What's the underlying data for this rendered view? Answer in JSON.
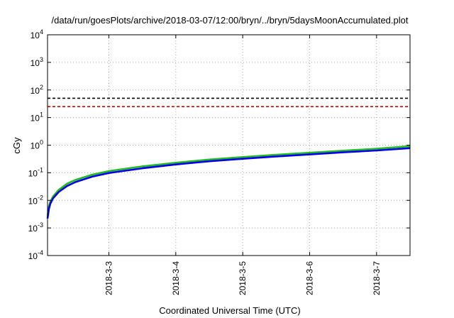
{
  "chart_data": {
    "type": "line",
    "title": "/data/run/goesPlots/archive/2018-03-07/12:00/bryn/../bryn/5daysMoonAccumulated.plot",
    "xlabel": "Coordinated Universal Time (UTC)",
    "ylabel": "cGy",
    "yscale": "log",
    "ylim": [
      0.0001,
      10000
    ],
    "y_ticks": [
      {
        "base": "10",
        "exp": "-4",
        "value": 0.0001
      },
      {
        "base": "10",
        "exp": "-3",
        "value": 0.001
      },
      {
        "base": "10",
        "exp": "-2",
        "value": 0.01
      },
      {
        "base": "10",
        "exp": "-1",
        "value": 0.1
      },
      {
        "base": "10",
        "exp": "0",
        "value": 1
      },
      {
        "base": "10",
        "exp": "1",
        "value": 10
      },
      {
        "base": "10",
        "exp": "2",
        "value": 100
      },
      {
        "base": "10",
        "exp": "3",
        "value": 1000
      },
      {
        "base": "10",
        "exp": "4",
        "value": 10000
      }
    ],
    "xlim": [
      "2018-03-02T02:00",
      "2018-03-07T12:00"
    ],
    "x_ticks": [
      {
        "label": "2018-3-3",
        "date": "2018-03-03"
      },
      {
        "label": "2018-3-4",
        "date": "2018-03-04"
      },
      {
        "label": "2018-3-5",
        "date": "2018-03-05"
      },
      {
        "label": "2018-3-6",
        "date": "2018-03-06"
      },
      {
        "label": "2018-3-7",
        "date": "2018-03-07"
      }
    ],
    "grid": true,
    "thresholds": [
      {
        "value": 50,
        "color": "#000000",
        "style": "dashed"
      },
      {
        "value": 25,
        "color": "#e00000",
        "style": "dashed"
      }
    ],
    "series": [
      {
        "color": "#22bb22",
        "x": [
          "2018-03-02T02:00",
          "2018-03-02T02:30",
          "2018-03-02T03:00",
          "2018-03-02T04:00",
          "2018-03-02T06:00",
          "2018-03-02T09:00",
          "2018-03-02T12:00",
          "2018-03-02T18:00",
          "2018-03-03T00:00",
          "2018-03-03T12:00",
          "2018-03-04T00:00",
          "2018-03-04T12:00",
          "2018-03-05T00:00",
          "2018-03-05T12:00",
          "2018-03-06T00:00",
          "2018-03-06T12:00",
          "2018-03-07T00:00",
          "2018-03-07T12:00"
        ],
        "y": [
          0.0028,
          0.006,
          0.009,
          0.014,
          0.024,
          0.04,
          0.055,
          0.085,
          0.115,
          0.17,
          0.23,
          0.3,
          0.37,
          0.45,
          0.53,
          0.63,
          0.74,
          0.92
        ]
      },
      {
        "color": "#0000ee",
        "x": [
          "2018-03-02T02:00",
          "2018-03-02T02:30",
          "2018-03-02T03:00",
          "2018-03-02T04:00",
          "2018-03-02T06:00",
          "2018-03-02T09:00",
          "2018-03-02T12:00",
          "2018-03-02T18:00",
          "2018-03-03T00:00",
          "2018-03-03T12:00",
          "2018-03-04T00:00",
          "2018-03-04T12:00",
          "2018-03-05T00:00",
          "2018-03-05T12:00",
          "2018-03-06T00:00",
          "2018-03-06T12:00",
          "2018-03-07T00:00",
          "2018-03-07T12:00"
        ],
        "y": [
          0.0022,
          0.005,
          0.0075,
          0.012,
          0.02,
          0.033,
          0.046,
          0.072,
          0.098,
          0.145,
          0.2,
          0.26,
          0.32,
          0.39,
          0.46,
          0.55,
          0.64,
          0.78
        ]
      }
    ]
  }
}
